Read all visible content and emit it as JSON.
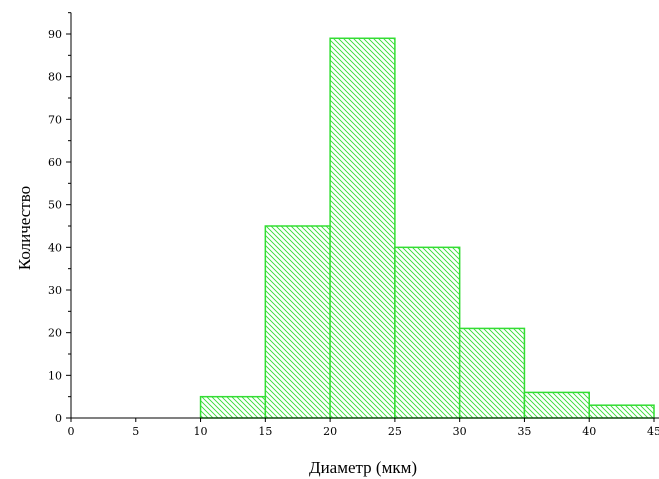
{
  "chart_data": {
    "type": "bar",
    "title": "",
    "xlabel": "Диаметр (мкм)",
    "ylabel": "Количество",
    "xlim": [
      0,
      45
    ],
    "ylim": [
      0,
      95
    ],
    "x_ticks": [
      0,
      5,
      10,
      15,
      20,
      25,
      30,
      35,
      40,
      45
    ],
    "y_ticks": [
      0,
      10,
      20,
      30,
      40,
      50,
      60,
      70,
      80,
      90
    ],
    "bins": [
      {
        "x_start": 10,
        "x_end": 15,
        "value": 5
      },
      {
        "x_start": 15,
        "x_end": 20,
        "value": 45
      },
      {
        "x_start": 20,
        "x_end": 25,
        "value": 89
      },
      {
        "x_start": 25,
        "x_end": 30,
        "value": 40
      },
      {
        "x_start": 30,
        "x_end": 35,
        "value": 21
      },
      {
        "x_start": 35,
        "x_end": 40,
        "value": 6
      },
      {
        "x_start": 40,
        "x_end": 45,
        "value": 3
      }
    ],
    "bar_color": "#33dd33",
    "grid": false,
    "legend": "none"
  }
}
